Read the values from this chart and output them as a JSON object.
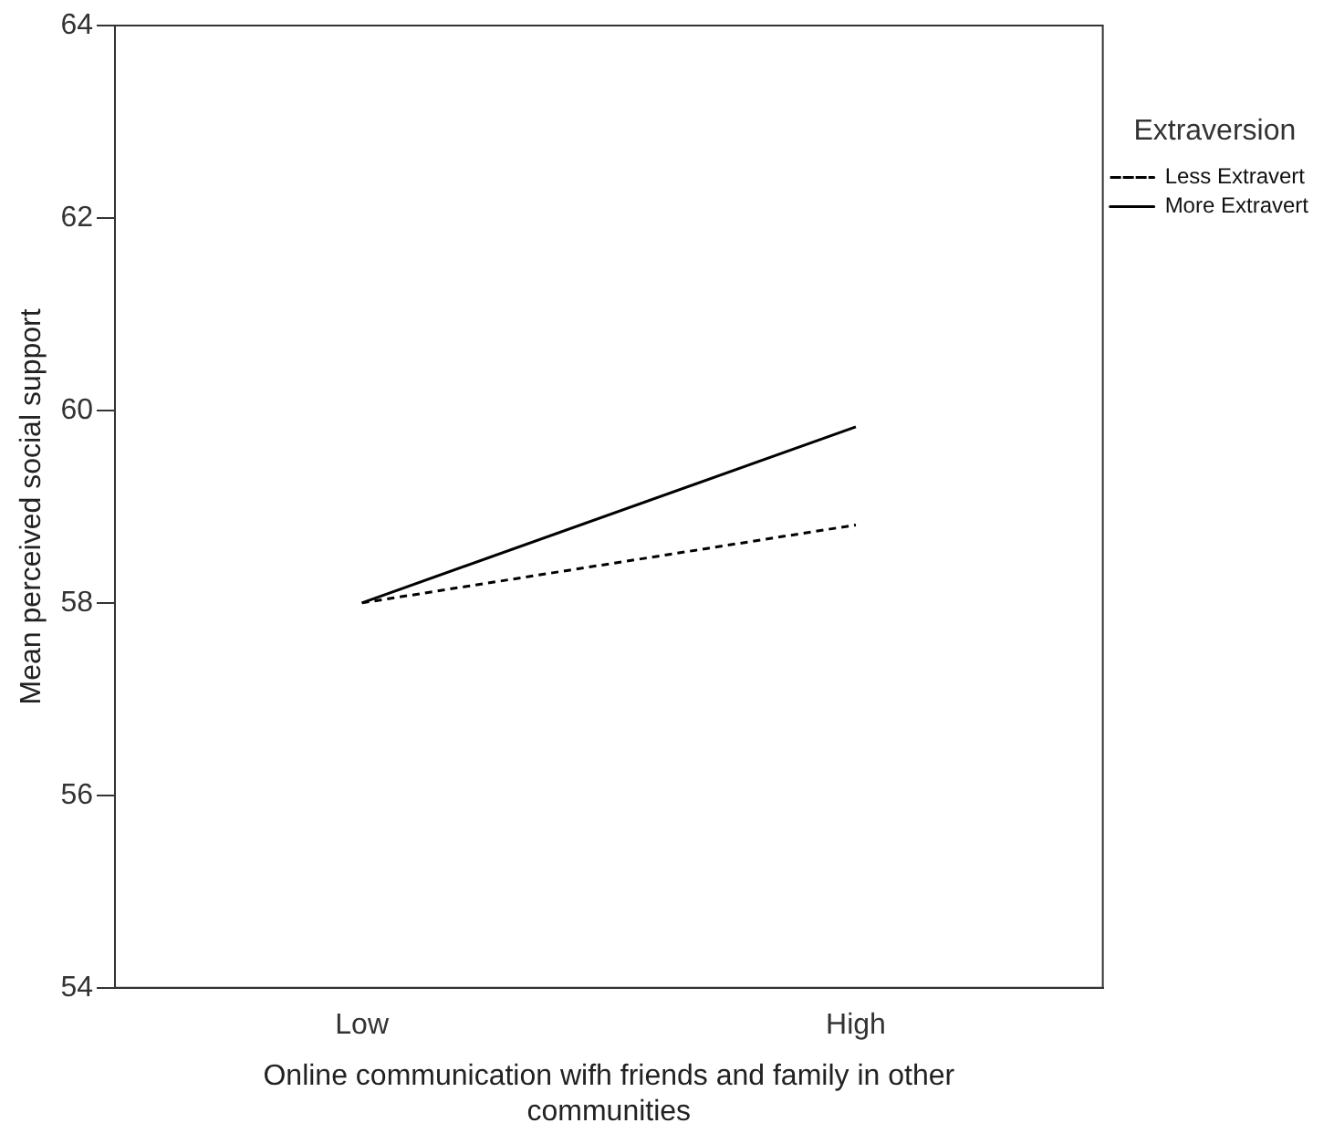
{
  "chart_data": {
    "type": "line",
    "xlabel": "Online communication wifh friends and family in other communities",
    "ylabel": "Mean perceived social support",
    "legend_title": "Extraversion",
    "categories": [
      "Low",
      "High"
    ],
    "series": [
      {
        "name": "Less Extravert",
        "color": "#000000",
        "line_style": "dashed",
        "values": [
          58.0,
          58.81
        ]
      },
      {
        "name": "More Extravert",
        "color": "#000000",
        "line_style": "solid",
        "values": [
          58.0,
          59.83
        ]
      }
    ],
    "ylim": [
      54,
      64
    ],
    "yticks": [
      54,
      56,
      58,
      60,
      62,
      64
    ],
    "grid": false,
    "legend": "right",
    "marker": "none"
  }
}
